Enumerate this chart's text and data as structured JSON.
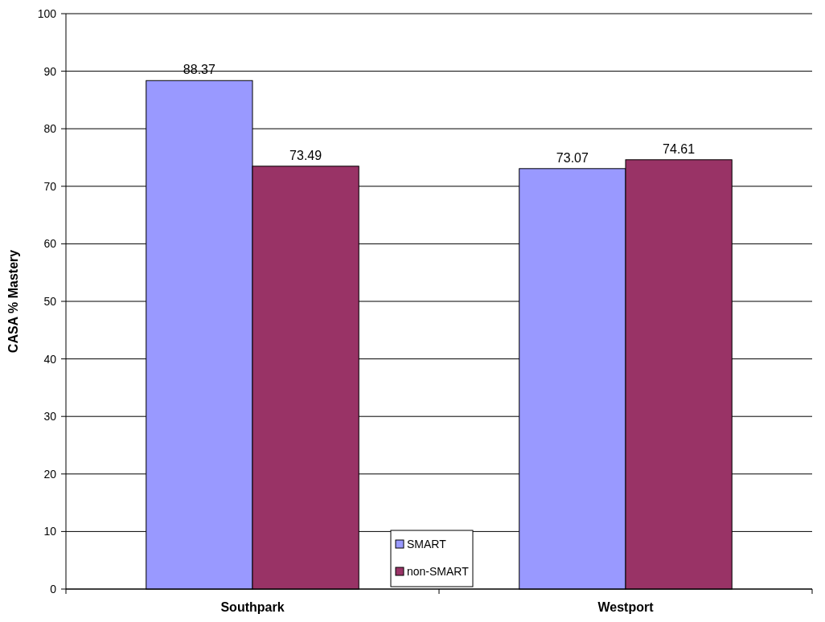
{
  "chart_data": {
    "type": "bar",
    "ylabel": "CASA % Mastery",
    "categories": [
      "Southpark",
      "Westport"
    ],
    "series": [
      {
        "name": "SMART",
        "color": "#9999ff",
        "values": [
          88.37,
          73.07
        ]
      },
      {
        "name": "non-SMART",
        "color": "#993366",
        "values": [
          73.49,
          74.61
        ]
      }
    ],
    "ylim": [
      0,
      100
    ],
    "yticks": [
      0,
      10,
      20,
      30,
      40,
      50,
      60,
      70,
      80,
      90,
      100
    ],
    "grid": "y",
    "legend": "bottom",
    "data_labels": true
  }
}
